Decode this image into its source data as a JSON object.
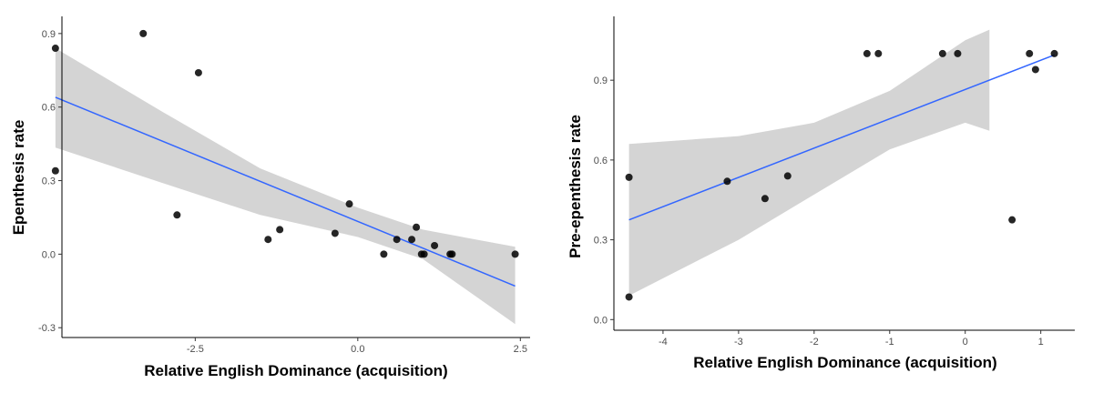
{
  "chart_data": [
    {
      "type": "scatter",
      "title": "",
      "xlabel": "Relative English Dominance (acquisition)",
      "ylabel": "Epenthesis rate",
      "xlim": [
        -4.55,
        2.65
      ],
      "ylim": [
        -0.34,
        0.97
      ],
      "x_ticks": [
        -2.5,
        0.0,
        2.5
      ],
      "x_tick_labels": [
        "-2.5",
        "0.0",
        "2.5"
      ],
      "y_ticks": [
        -0.3,
        0.0,
        0.3,
        0.6,
        0.9
      ],
      "y_tick_labels": [
        "-0.3",
        "0.0",
        "0.3",
        "0.6",
        "0.9"
      ],
      "grid": false,
      "points": {
        "x": [
          -4.65,
          -4.65,
          -3.3,
          -2.45,
          -2.78,
          -1.38,
          -1.2,
          -0.35,
          -0.13,
          0.4,
          0.6,
          0.83,
          0.9,
          0.98,
          1.02,
          1.18,
          1.42,
          1.45,
          2.42
        ],
        "y": [
          0.84,
          0.34,
          0.9,
          0.74,
          0.16,
          0.06,
          0.1,
          0.085,
          0.205,
          0.0,
          0.06,
          0.06,
          0.11,
          0.0,
          0.0,
          0.035,
          0.0,
          0.0,
          0.0
        ]
      },
      "fit": {
        "x": [
          -4.65,
          2.42
        ],
        "y": [
          0.64,
          -0.13
        ],
        "ci_lower": [
          0.435,
          0.29,
          0.16,
          0.07,
          -0.02,
          -0.285
        ],
        "ci_upper": [
          0.84,
          0.58,
          0.35,
          0.19,
          0.1,
          0.03
        ],
        "ci_x": [
          -4.65,
          -3.0,
          -1.5,
          0.0,
          1.0,
          2.42
        ]
      },
      "colors": {
        "points": "#000000",
        "line": "#3366ff",
        "band": "#d4d4d4"
      }
    },
    {
      "type": "scatter",
      "title": "",
      "xlabel": "Relative English Dominance (acquisition)",
      "ylabel": "Pre-epenthesis rate",
      "xlim": [
        -4.65,
        1.45
      ],
      "ylim": [
        -0.04,
        1.14
      ],
      "x_ticks": [
        -4,
        -3,
        -2,
        -1,
        0,
        1
      ],
      "x_tick_labels": [
        "-4",
        "-3",
        "-2",
        "-1",
        "0",
        "1"
      ],
      "y_ticks": [
        0.0,
        0.3,
        0.6,
        0.9
      ],
      "y_tick_labels": [
        "0.0",
        "0.3",
        "0.6",
        "0.9"
      ],
      "grid": false,
      "points": {
        "x": [
          -4.45,
          -4.45,
          -3.15,
          -2.65,
          -2.35,
          -1.3,
          -1.15,
          -0.3,
          -0.1,
          0.62,
          0.85,
          0.93,
          1.18
        ],
        "y": [
          0.535,
          0.085,
          0.52,
          0.455,
          0.54,
          1.0,
          1.0,
          1.0,
          1.0,
          0.375,
          1.0,
          0.94,
          1.0
        ]
      },
      "fit": {
        "x": [
          -4.45,
          1.18
        ],
        "y": [
          0.375,
          0.995
        ],
        "ci_x": [
          -4.45,
          -3.0,
          -2.0,
          -1.0,
          0.0,
          0.32
        ],
        "ci_lower": [
          0.09,
          0.3,
          0.47,
          0.64,
          0.74,
          0.71
        ],
        "ci_upper": [
          0.66,
          0.69,
          0.74,
          0.86,
          1.05,
          1.09
        ]
      },
      "colors": {
        "points": "#000000",
        "line": "#3366ff",
        "band": "#d4d4d4"
      }
    }
  ]
}
